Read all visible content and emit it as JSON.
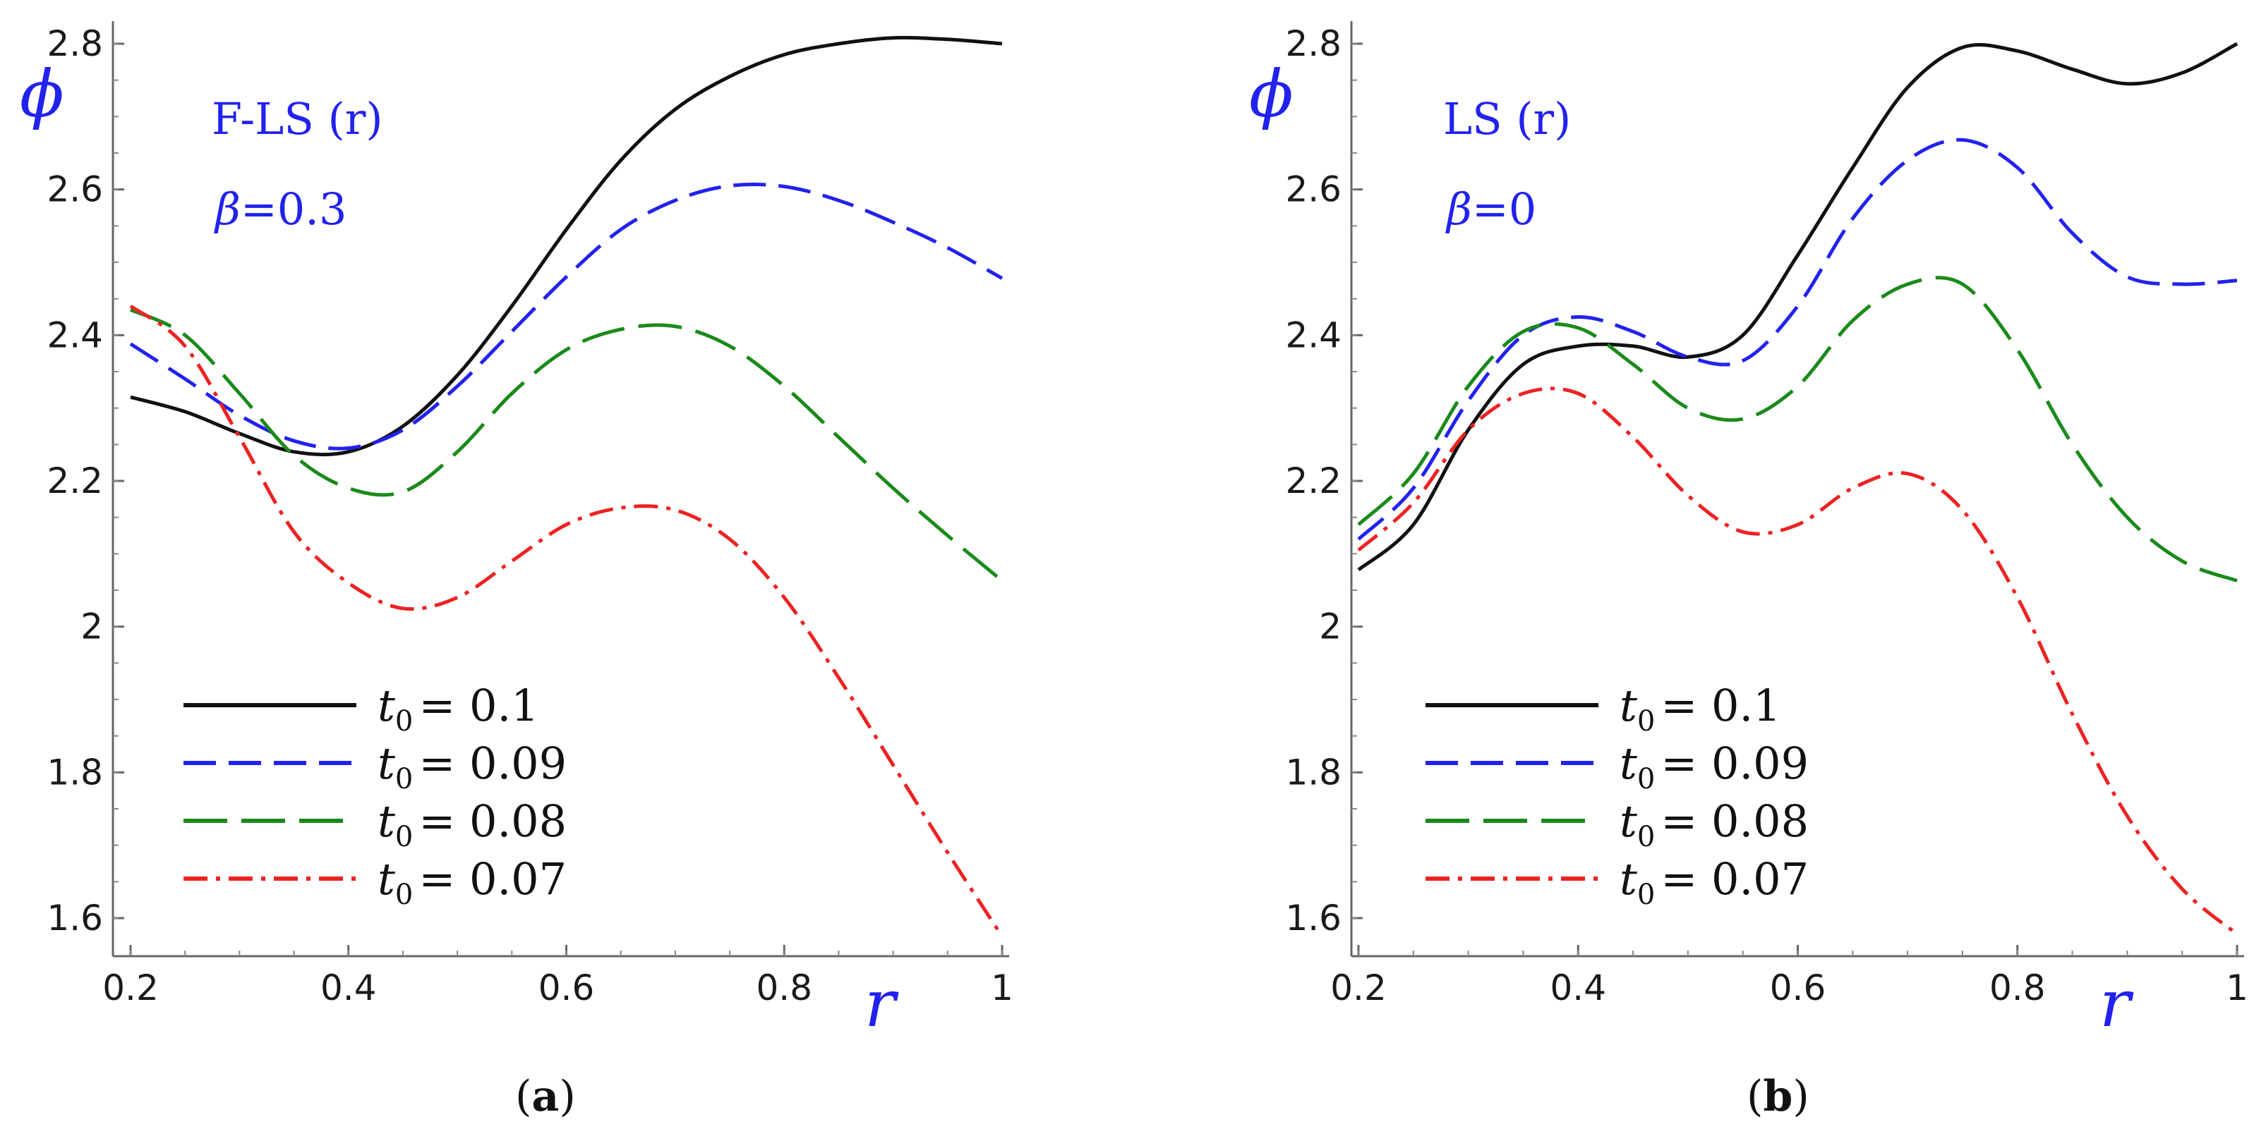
{
  "chart_data": [
    {
      "type": "line",
      "panel_label": "a",
      "annotation": {
        "line1": "F-LS (r)",
        "beta_symbol": "β",
        "beta_value": "=0.3"
      },
      "xlabel": "r",
      "ylabel": "ϕ",
      "xlim": [
        0.2,
        1.0
      ],
      "ylim": [
        1.55,
        2.82
      ],
      "xticks": [
        0.2,
        0.4,
        0.6,
        0.8,
        1.0
      ],
      "xtick_labels": [
        "0.2",
        "0.4",
        "0.6",
        "0.8",
        "1"
      ],
      "yticks": [
        1.6,
        1.8,
        2.0,
        2.2,
        2.4,
        2.6,
        2.8
      ],
      "ytick_labels": [
        "1.6",
        "1.8",
        "2",
        "2.2",
        "2.4",
        "2.6",
        "2.8"
      ],
      "legend_position": "bottom-left",
      "x": [
        0.2,
        0.25,
        0.3,
        0.35,
        0.4,
        0.45,
        0.5,
        0.55,
        0.6,
        0.65,
        0.7,
        0.75,
        0.8,
        0.85,
        0.9,
        0.95,
        1.0
      ],
      "series": [
        {
          "name": "t0 = 0.1",
          "t_label": "t",
          "subscript": "0",
          "value_text": "= 0.1",
          "color": "#111111",
          "dash": "solid",
          "values": [
            2.315,
            2.295,
            2.265,
            2.24,
            2.24,
            2.275,
            2.345,
            2.44,
            2.545,
            2.64,
            2.71,
            2.755,
            2.785,
            2.8,
            2.808,
            2.806,
            2.8
          ]
        },
        {
          "name": "t0 = 0.09",
          "t_label": "t",
          "subscript": "0",
          "value_text": "= 0.09",
          "color": "#2222ee",
          "dash": "longdash",
          "values": [
            2.388,
            2.34,
            2.29,
            2.255,
            2.245,
            2.27,
            2.33,
            2.405,
            2.48,
            2.545,
            2.585,
            2.605,
            2.604,
            2.585,
            2.555,
            2.52,
            2.478
          ]
        },
        {
          "name": "t0 = 0.08",
          "t_label": "t",
          "subscript": "0",
          "value_text": "= 0.08",
          "color": "#1a8a1a",
          "dash": "longerdash",
          "values": [
            2.435,
            2.4,
            2.32,
            2.235,
            2.19,
            2.185,
            2.24,
            2.32,
            2.38,
            2.408,
            2.412,
            2.385,
            2.33,
            2.26,
            2.19,
            2.125,
            2.063
          ]
        },
        {
          "name": "t0 = 0.07",
          "t_label": "t",
          "subscript": "0",
          "value_text": "= 0.07",
          "color": "#ee2222",
          "dash": "dashdot",
          "values": [
            2.44,
            2.385,
            2.26,
            2.13,
            2.06,
            2.025,
            2.04,
            2.09,
            2.14,
            2.163,
            2.16,
            2.12,
            2.04,
            1.93,
            1.81,
            1.69,
            1.575
          ]
        }
      ]
    },
    {
      "type": "line",
      "panel_label": "b",
      "annotation": {
        "line1": "LS (r)",
        "beta_symbol": "β",
        "beta_value": "=0"
      },
      "xlabel": "r",
      "ylabel": "ϕ",
      "xlim": [
        0.2,
        1.0
      ],
      "ylim": [
        1.55,
        2.82
      ],
      "xticks": [
        0.2,
        0.4,
        0.6,
        0.8,
        1.0
      ],
      "xtick_labels": [
        "0.2",
        "0.4",
        "0.6",
        "0.8",
        "1"
      ],
      "yticks": [
        1.6,
        1.8,
        2.0,
        2.2,
        2.4,
        2.6,
        2.8
      ],
      "ytick_labels": [
        "1.6",
        "1.8",
        "2",
        "2.2",
        "2.4",
        "2.6",
        "2.8"
      ],
      "legend_position": "bottom-left",
      "x": [
        0.2,
        0.25,
        0.3,
        0.35,
        0.4,
        0.45,
        0.5,
        0.55,
        0.6,
        0.65,
        0.7,
        0.75,
        0.8,
        0.85,
        0.9,
        0.95,
        1.0
      ],
      "series": [
        {
          "name": "t0 = 0.1",
          "t_label": "t",
          "subscript": "0",
          "value_text": "= 0.1",
          "color": "#111111",
          "dash": "solid",
          "values": [
            2.078,
            2.14,
            2.27,
            2.36,
            2.385,
            2.385,
            2.37,
            2.4,
            2.51,
            2.63,
            2.74,
            2.795,
            2.79,
            2.765,
            2.745,
            2.76,
            2.8
          ]
        },
        {
          "name": "t0 = 0.09",
          "t_label": "t",
          "subscript": "0",
          "value_text": "= 0.09",
          "color": "#2222ee",
          "dash": "longdash",
          "values": [
            2.12,
            2.19,
            2.31,
            2.4,
            2.425,
            2.405,
            2.37,
            2.365,
            2.44,
            2.56,
            2.64,
            2.668,
            2.63,
            2.54,
            2.48,
            2.47,
            2.475
          ]
        },
        {
          "name": "t0 = 0.08",
          "t_label": "t",
          "subscript": "0",
          "value_text": "= 0.08",
          "color": "#1a8a1a",
          "dash": "longerdash",
          "values": [
            2.14,
            2.21,
            2.33,
            2.405,
            2.41,
            2.36,
            2.3,
            2.285,
            2.33,
            2.42,
            2.47,
            2.47,
            2.38,
            2.25,
            2.15,
            2.09,
            2.063
          ]
        },
        {
          "name": "t0 = 0.07",
          "t_label": "t",
          "subscript": "0",
          "value_text": "= 0.07",
          "color": "#ee2222",
          "dash": "dashdot",
          "values": [
            2.105,
            2.17,
            2.27,
            2.32,
            2.32,
            2.26,
            2.18,
            2.13,
            2.14,
            2.19,
            2.21,
            2.16,
            2.04,
            1.88,
            1.74,
            1.64,
            1.578
          ]
        }
      ]
    }
  ]
}
